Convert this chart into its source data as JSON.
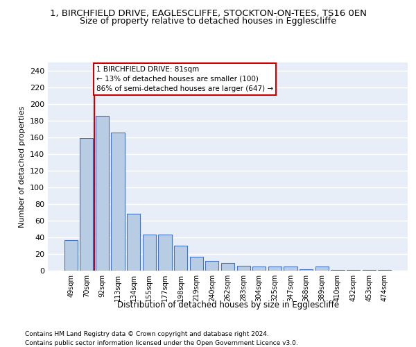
{
  "title": "1, BIRCHFIELD DRIVE, EAGLESCLIFFE, STOCKTON-ON-TEES, TS16 0EN",
  "subtitle": "Size of property relative to detached houses in Egglescliffe",
  "xlabel": "Distribution of detached houses by size in Egglescliffe",
  "ylabel": "Number of detached properties",
  "categories": [
    "49sqm",
    "70sqm",
    "92sqm",
    "113sqm",
    "134sqm",
    "155sqm",
    "177sqm",
    "198sqm",
    "219sqm",
    "240sqm",
    "262sqm",
    "283sqm",
    "304sqm",
    "325sqm",
    "347sqm",
    "368sqm",
    "389sqm",
    "410sqm",
    "432sqm",
    "453sqm",
    "474sqm"
  ],
  "values": [
    37,
    159,
    186,
    166,
    68,
    43,
    43,
    30,
    17,
    12,
    9,
    6,
    5,
    5,
    5,
    2,
    5,
    1,
    1,
    1,
    1
  ],
  "bar_color": "#b8cce4",
  "bar_edge_color": "#4472c4",
  "bg_color": "#e8eef8",
  "grid_color": "#ffffff",
  "vline_color": "#cc0000",
  "annotation_text": "1 BIRCHFIELD DRIVE: 81sqm\n← 13% of detached houses are smaller (100)\n86% of semi-detached houses are larger (647) →",
  "annotation_box_color": "#cc0000",
  "ylim": [
    0,
    250
  ],
  "yticks": [
    0,
    20,
    40,
    60,
    80,
    100,
    120,
    140,
    160,
    180,
    200,
    220,
    240
  ],
  "footer_line1": "Contains HM Land Registry data © Crown copyright and database right 2024.",
  "footer_line2": "Contains public sector information licensed under the Open Government Licence v3.0."
}
